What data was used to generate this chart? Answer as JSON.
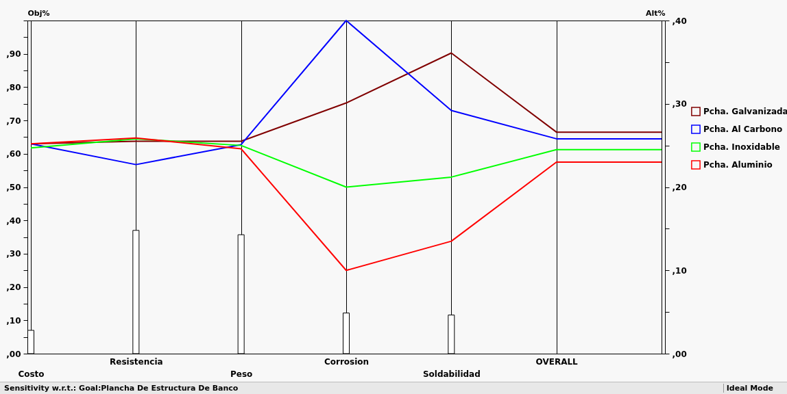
{
  "chart_data": {
    "type": "line",
    "ylabel": "Obj%",
    "y2label": "Alt%",
    "categories": [
      "Costo",
      "Resistencia",
      "Peso",
      "Corrosion",
      "Soldabilidad",
      "OVERALL",
      null
    ],
    "ylim": [
      0,
      100
    ],
    "yticks": [
      {
        "value": 0,
        "label": ",00"
      },
      {
        "value": 5,
        "label": null
      },
      {
        "value": 10,
        "label": ",10"
      },
      {
        "value": 15,
        "label": null
      },
      {
        "value": 20,
        "label": ",20"
      },
      {
        "value": 25,
        "label": null
      },
      {
        "value": 30,
        "label": ",30"
      },
      {
        "value": 35,
        "label": null
      },
      {
        "value": 40,
        "label": ",40"
      },
      {
        "value": 45,
        "label": null
      },
      {
        "value": 50,
        "label": ",50"
      },
      {
        "value": 55,
        "label": null
      },
      {
        "value": 60,
        "label": ",60"
      },
      {
        "value": 65,
        "label": null
      },
      {
        "value": 70,
        "label": ",70"
      },
      {
        "value": 75,
        "label": null
      },
      {
        "value": 80,
        "label": ",80"
      },
      {
        "value": 85,
        "label": null
      },
      {
        "value": 90,
        "label": ",90"
      },
      {
        "value": 95,
        "label": null
      },
      {
        "value": 100,
        "label": null
      }
    ],
    "y2lim": [
      0,
      40
    ],
    "y2ticks": [
      {
        "value": 0,
        "label": ",00"
      },
      {
        "value": 5,
        "label": null
      },
      {
        "value": 10,
        "label": ",10"
      },
      {
        "value": 15,
        "label": null
      },
      {
        "value": 20,
        "label": ",20"
      },
      {
        "value": 25,
        "label": null
      },
      {
        "value": 30,
        "label": ",30"
      },
      {
        "value": 35,
        "label": null
      },
      {
        "value": 40,
        "label": ",40"
      }
    ],
    "grid": "x",
    "legend": "right",
    "series": [
      {
        "type": "bar",
        "color": "#ffffff",
        "values": [
          7,
          37,
          35.7,
          12.2,
          11.6,
          null,
          null
        ]
      },
      {
        "name": "Pcha. Galvanizada",
        "color": "#800000",
        "axis": "y2",
        "values": [
          25.2,
          25.5,
          25.5,
          30.1,
          36.1,
          26.6,
          26.6
        ]
      },
      {
        "name": "Pcha. Al Carbono",
        "color": "#0000ff",
        "axis": "y2",
        "values": [
          25.2,
          22.7,
          25.1,
          40,
          29.2,
          25.8,
          25.8
        ]
      },
      {
        "name": "Pcha. Inoxidable",
        "color": "#00ff00",
        "axis": "y2",
        "values": [
          24.7,
          25.8,
          25,
          20,
          21.2,
          24.5,
          24.5
        ]
      },
      {
        "name": "Pcha. Aluminio",
        "color": "#ff0000",
        "axis": "y2",
        "values": [
          25.2,
          25.9,
          24.6,
          10,
          13.5,
          23,
          23
        ]
      }
    ],
    "annotations": [
      "Sensitivity w.r.t.: Goal:Plancha De Estructura De Banco",
      "Ideal Mode"
    ]
  }
}
